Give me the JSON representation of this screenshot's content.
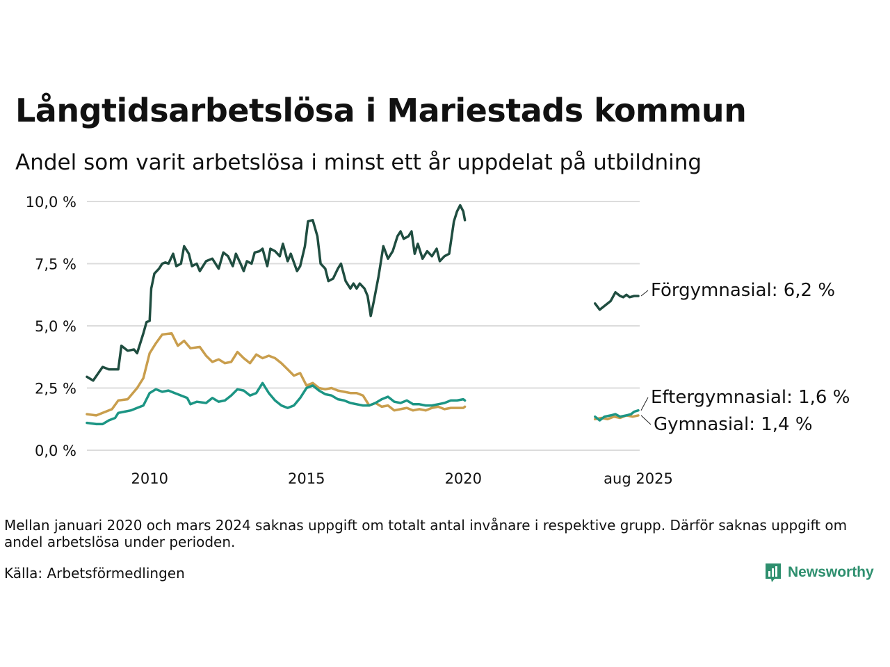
{
  "title": "Långtidsarbetslösa i Mariestads kommun",
  "subtitle": "Andel som varit arbetslösa i minst ett år uppdelat på utbildning",
  "note": "Mellan januari 2020 och mars 2024 saknas uppgift om totalt antal invånare i respektive grupp. Därför saknas uppgift om andel arbetslösa under perioden.",
  "source": "Källa: Arbetsförmedlingen",
  "logo_text": "Newsworthy",
  "colors": {
    "forgymnasial": "#1f4d40",
    "eftergymnasial": "#1c9584",
    "gymnasial": "#c99e4d",
    "grid": "#dcdcdc"
  },
  "chart_data": {
    "type": "line",
    "title": "Långtidsarbetslösa i Mariestads kommun",
    "subtitle": "Andel som varit arbetslösa i minst ett år uppdelat på utbildning",
    "ylim": [
      0,
      10
    ],
    "yticks": [
      0,
      2.5,
      5,
      7.5,
      10
    ],
    "ytick_labels": [
      "0,0 %",
      "2,5 %",
      "5,0 %",
      "7,5 %",
      "10,0 %"
    ],
    "xtick_labels": [
      "2010",
      "2015",
      "2020",
      "aug 2025"
    ],
    "xtick_values": [
      2010,
      2015,
      2020,
      2025.58
    ],
    "grid": "horizontal",
    "legend": "end-of-line labels",
    "series": [
      {
        "name": "Förgymnasial",
        "end_label": "Förgymnasial: 6,2 %",
        "color_key": "forgymnasial",
        "segments": [
          [
            [
              2008.0,
              2.95
            ],
            [
              2008.2,
              2.8
            ],
            [
              2008.5,
              3.35
            ],
            [
              2008.7,
              3.25
            ],
            [
              2009.0,
              3.25
            ],
            [
              2009.1,
              4.2
            ],
            [
              2009.3,
              4.0
            ],
            [
              2009.5,
              4.05
            ],
            [
              2009.6,
              3.9
            ],
            [
              2009.8,
              4.7
            ],
            [
              2009.9,
              5.15
            ],
            [
              2010.0,
              5.2
            ],
            [
              2010.05,
              6.5
            ],
            [
              2010.15,
              7.1
            ],
            [
              2010.3,
              7.3
            ],
            [
              2010.4,
              7.5
            ],
            [
              2010.5,
              7.55
            ],
            [
              2010.6,
              7.5
            ],
            [
              2010.75,
              7.9
            ],
            [
              2010.85,
              7.4
            ],
            [
              2011.0,
              7.5
            ],
            [
              2011.1,
              8.2
            ],
            [
              2011.25,
              7.9
            ],
            [
              2011.35,
              7.4
            ],
            [
              2011.5,
              7.5
            ],
            [
              2011.6,
              7.2
            ],
            [
              2011.8,
              7.6
            ],
            [
              2012.0,
              7.7
            ],
            [
              2012.2,
              7.3
            ],
            [
              2012.35,
              7.95
            ],
            [
              2012.5,
              7.8
            ],
            [
              2012.65,
              7.4
            ],
            [
              2012.75,
              7.9
            ],
            [
              2012.9,
              7.5
            ],
            [
              2013.0,
              7.2
            ],
            [
              2013.1,
              7.6
            ],
            [
              2013.25,
              7.5
            ],
            [
              2013.35,
              7.95
            ],
            [
              2013.5,
              8.0
            ],
            [
              2013.6,
              8.1
            ],
            [
              2013.75,
              7.4
            ],
            [
              2013.85,
              8.1
            ],
            [
              2014.0,
              8.0
            ],
            [
              2014.15,
              7.8
            ],
            [
              2014.25,
              8.3
            ],
            [
              2014.4,
              7.6
            ],
            [
              2014.5,
              7.9
            ],
            [
              2014.7,
              7.2
            ],
            [
              2014.8,
              7.4
            ],
            [
              2014.95,
              8.2
            ],
            [
              2015.05,
              9.2
            ],
            [
              2015.2,
              9.25
            ],
            [
              2015.35,
              8.6
            ],
            [
              2015.45,
              7.5
            ],
            [
              2015.6,
              7.3
            ],
            [
              2015.7,
              6.8
            ],
            [
              2015.85,
              6.9
            ],
            [
              2016.0,
              7.3
            ],
            [
              2016.1,
              7.5
            ],
            [
              2016.25,
              6.8
            ],
            [
              2016.4,
              6.5
            ],
            [
              2016.5,
              6.7
            ],
            [
              2016.6,
              6.5
            ],
            [
              2016.7,
              6.7
            ],
            [
              2016.85,
              6.5
            ],
            [
              2016.95,
              6.2
            ],
            [
              2017.05,
              5.4
            ],
            [
              2017.15,
              6.0
            ],
            [
              2017.3,
              7.0
            ],
            [
              2017.45,
              8.2
            ],
            [
              2017.6,
              7.7
            ],
            [
              2017.75,
              8.0
            ],
            [
              2017.9,
              8.6
            ],
            [
              2018.0,
              8.8
            ],
            [
              2018.1,
              8.5
            ],
            [
              2018.25,
              8.6
            ],
            [
              2018.35,
              8.8
            ],
            [
              2018.45,
              7.9
            ],
            [
              2018.55,
              8.3
            ],
            [
              2018.7,
              7.7
            ],
            [
              2018.85,
              8.0
            ],
            [
              2019.0,
              7.8
            ],
            [
              2019.15,
              8.1
            ],
            [
              2019.25,
              7.6
            ],
            [
              2019.4,
              7.8
            ],
            [
              2019.55,
              7.9
            ],
            [
              2019.7,
              9.2
            ],
            [
              2019.8,
              9.6
            ],
            [
              2019.9,
              9.85
            ],
            [
              2020.0,
              9.6
            ],
            [
              2020.05,
              9.25
            ]
          ],
          [
            [
              2024.2,
              5.9
            ],
            [
              2024.35,
              5.65
            ],
            [
              2024.55,
              5.85
            ],
            [
              2024.7,
              6.0
            ],
            [
              2024.85,
              6.35
            ],
            [
              2025.0,
              6.2
            ],
            [
              2025.1,
              6.15
            ],
            [
              2025.2,
              6.25
            ],
            [
              2025.3,
              6.15
            ],
            [
              2025.45,
              6.2
            ],
            [
              2025.58,
              6.2
            ]
          ]
        ]
      },
      {
        "name": "Gymnasial",
        "end_label": "Gymnasial: 1,4 %",
        "color_key": "gymnasial",
        "segments": [
          [
            [
              2008.0,
              1.45
            ],
            [
              2008.3,
              1.4
            ],
            [
              2008.5,
              1.5
            ],
            [
              2008.8,
              1.65
            ],
            [
              2009.0,
              2.0
            ],
            [
              2009.3,
              2.05
            ],
            [
              2009.6,
              2.5
            ],
            [
              2009.8,
              2.9
            ],
            [
              2010.0,
              3.9
            ],
            [
              2010.2,
              4.3
            ],
            [
              2010.4,
              4.65
            ],
            [
              2010.7,
              4.7
            ],
            [
              2010.9,
              4.2
            ],
            [
              2011.1,
              4.4
            ],
            [
              2011.3,
              4.1
            ],
            [
              2011.6,
              4.15
            ],
            [
              2011.8,
              3.8
            ],
            [
              2012.0,
              3.55
            ],
            [
              2012.2,
              3.65
            ],
            [
              2012.4,
              3.5
            ],
            [
              2012.6,
              3.55
            ],
            [
              2012.8,
              3.95
            ],
            [
              2013.0,
              3.7
            ],
            [
              2013.2,
              3.5
            ],
            [
              2013.4,
              3.85
            ],
            [
              2013.6,
              3.7
            ],
            [
              2013.8,
              3.8
            ],
            [
              2014.0,
              3.7
            ],
            [
              2014.2,
              3.5
            ],
            [
              2014.4,
              3.25
            ],
            [
              2014.6,
              3.0
            ],
            [
              2014.8,
              3.1
            ],
            [
              2015.0,
              2.6
            ],
            [
              2015.2,
              2.7
            ],
            [
              2015.4,
              2.5
            ],
            [
              2015.6,
              2.45
            ],
            [
              2015.8,
              2.5
            ],
            [
              2016.0,
              2.4
            ],
            [
              2016.2,
              2.35
            ],
            [
              2016.4,
              2.3
            ],
            [
              2016.6,
              2.3
            ],
            [
              2016.8,
              2.2
            ],
            [
              2017.0,
              1.8
            ],
            [
              2017.2,
              1.9
            ],
            [
              2017.4,
              1.75
            ],
            [
              2017.6,
              1.8
            ],
            [
              2017.8,
              1.6
            ],
            [
              2018.0,
              1.65
            ],
            [
              2018.2,
              1.7
            ],
            [
              2018.4,
              1.6
            ],
            [
              2018.6,
              1.65
            ],
            [
              2018.8,
              1.6
            ],
            [
              2019.0,
              1.7
            ],
            [
              2019.2,
              1.75
            ],
            [
              2019.4,
              1.65
            ],
            [
              2019.6,
              1.7
            ],
            [
              2019.8,
              1.7
            ],
            [
              2020.0,
              1.7
            ],
            [
              2020.05,
              1.75
            ]
          ],
          [
            [
              2024.2,
              1.25
            ],
            [
              2024.4,
              1.3
            ],
            [
              2024.6,
              1.25
            ],
            [
              2024.8,
              1.35
            ],
            [
              2025.0,
              1.3
            ],
            [
              2025.2,
              1.4
            ],
            [
              2025.4,
              1.35
            ],
            [
              2025.58,
              1.4
            ]
          ]
        ]
      },
      {
        "name": "Eftergymnasial",
        "end_label": "Eftergymnasial: 1,6 %",
        "color_key": "eftergymnasial",
        "segments": [
          [
            [
              2008.0,
              1.1
            ],
            [
              2008.3,
              1.05
            ],
            [
              2008.5,
              1.05
            ],
            [
              2008.7,
              1.2
            ],
            [
              2008.9,
              1.3
            ],
            [
              2009.0,
              1.5
            ],
            [
              2009.2,
              1.55
            ],
            [
              2009.4,
              1.6
            ],
            [
              2009.6,
              1.7
            ],
            [
              2009.8,
              1.8
            ],
            [
              2010.0,
              2.3
            ],
            [
              2010.2,
              2.45
            ],
            [
              2010.4,
              2.35
            ],
            [
              2010.6,
              2.4
            ],
            [
              2010.8,
              2.3
            ],
            [
              2011.0,
              2.2
            ],
            [
              2011.2,
              2.1
            ],
            [
              2011.3,
              1.85
            ],
            [
              2011.5,
              1.95
            ],
            [
              2011.8,
              1.9
            ],
            [
              2012.0,
              2.1
            ],
            [
              2012.2,
              1.95
            ],
            [
              2012.4,
              2.0
            ],
            [
              2012.6,
              2.2
            ],
            [
              2012.8,
              2.45
            ],
            [
              2013.0,
              2.4
            ],
            [
              2013.2,
              2.2
            ],
            [
              2013.4,
              2.3
            ],
            [
              2013.6,
              2.7
            ],
            [
              2013.8,
              2.3
            ],
            [
              2014.0,
              2.0
            ],
            [
              2014.2,
              1.8
            ],
            [
              2014.4,
              1.7
            ],
            [
              2014.6,
              1.8
            ],
            [
              2014.8,
              2.1
            ],
            [
              2015.0,
              2.5
            ],
            [
              2015.2,
              2.6
            ],
            [
              2015.4,
              2.4
            ],
            [
              2015.6,
              2.25
            ],
            [
              2015.8,
              2.2
            ],
            [
              2016.0,
              2.05
            ],
            [
              2016.2,
              2.0
            ],
            [
              2016.4,
              1.9
            ],
            [
              2016.6,
              1.85
            ],
            [
              2016.8,
              1.8
            ],
            [
              2017.0,
              1.8
            ],
            [
              2017.2,
              1.9
            ],
            [
              2017.4,
              2.05
            ],
            [
              2017.6,
              2.15
            ],
            [
              2017.8,
              1.95
            ],
            [
              2018.0,
              1.9
            ],
            [
              2018.2,
              2.0
            ],
            [
              2018.4,
              1.85
            ],
            [
              2018.6,
              1.85
            ],
            [
              2018.8,
              1.8
            ],
            [
              2019.0,
              1.8
            ],
            [
              2019.2,
              1.85
            ],
            [
              2019.4,
              1.9
            ],
            [
              2019.6,
              2.0
            ],
            [
              2019.8,
              2.0
            ],
            [
              2020.0,
              2.05
            ],
            [
              2020.05,
              2.0
            ]
          ],
          [
            [
              2024.2,
              1.35
            ],
            [
              2024.35,
              1.2
            ],
            [
              2024.5,
              1.35
            ],
            [
              2024.7,
              1.4
            ],
            [
              2024.85,
              1.45
            ],
            [
              2025.0,
              1.35
            ],
            [
              2025.2,
              1.4
            ],
            [
              2025.35,
              1.45
            ],
            [
              2025.45,
              1.55
            ],
            [
              2025.58,
              1.6
            ]
          ]
        ]
      }
    ]
  }
}
